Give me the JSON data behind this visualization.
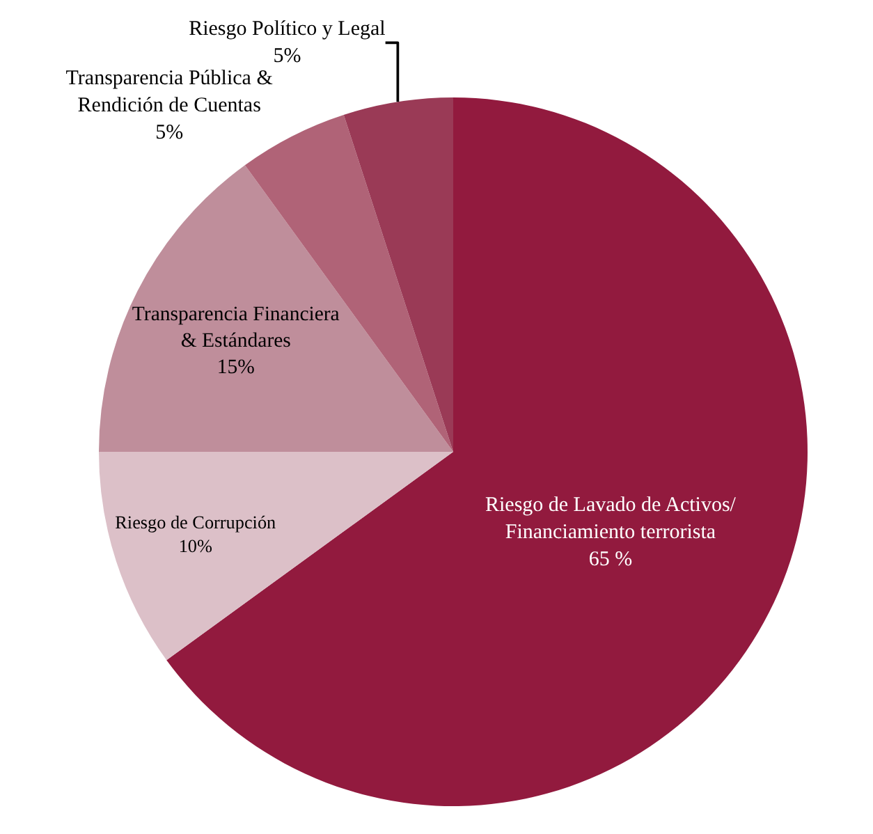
{
  "chart_data": {
    "type": "pie",
    "categories": [
      "Riesgo de Lavado de Activos/\nFinanciamiento terrorista",
      "Riesgo de Corrupción",
      "Transparencia Financiera\n& Estándares",
      "Transparencia Pública &\nRendición de Cuentas",
      "Riesgo Político y Legal"
    ],
    "values": [
      65,
      10,
      15,
      5,
      5
    ],
    "value_labels": [
      "65 %",
      "10%",
      "15%",
      "5%",
      "5%"
    ],
    "colors": [
      "#921a3e",
      "#dcc0c8",
      "#bf8e9b",
      "#b06377",
      "#9a3a56"
    ],
    "legend": false
  }
}
